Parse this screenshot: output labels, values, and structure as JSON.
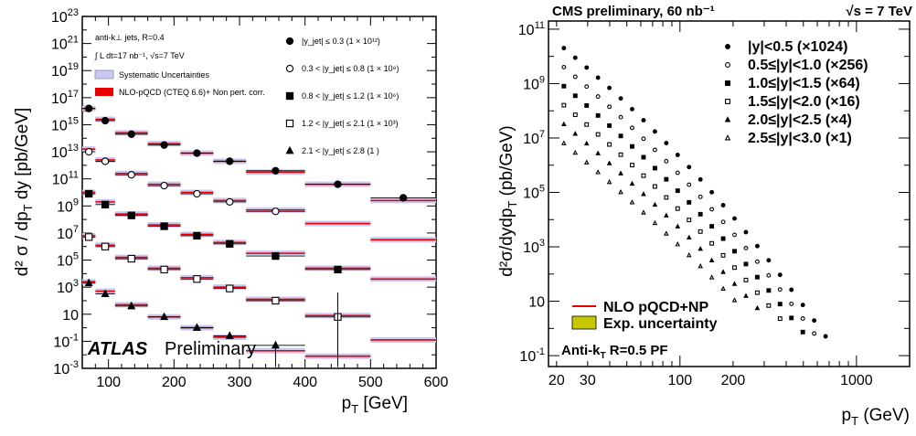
{
  "chart_data": [
    {
      "type": "scatter",
      "panel": "atlas",
      "xlabel": "p_T [GeV]",
      "ylabel": "d²σ / dp_T dy [pb/GeV]",
      "xlim": [
        60,
        600
      ],
      "ylim_log10": [
        -3,
        23
      ],
      "y_scale": "log",
      "x_ticks": [
        "100",
        "200",
        "300",
        "400",
        "500",
        "600"
      ],
      "y_ticks": [
        "10^-3",
        "10^-1",
        "10",
        "10^3",
        "10^5",
        "10^7",
        "10^9",
        "10^11",
        "10^13",
        "10^15",
        "10^17",
        "10^19",
        "10^21",
        "10^23"
      ],
      "info_lines": [
        "anti-k⊥ jets,  R=0.4",
        "∫ L dt=17 nb⁻¹, √s=7 TeV"
      ],
      "band_legend": [
        "Systematic Uncertainties",
        "NLO-pQCD (CTEQ 6.6)+ Non pert. corr."
      ],
      "brand": "ATLAS",
      "brand_sub": "Preliminary",
      "colors": {
        "systematic_band": "#c8c8f0",
        "theory": "#e60000",
        "marker": "#000000"
      },
      "bin_edges": [
        60,
        80,
        110,
        160,
        210,
        260,
        310,
        400,
        500,
        600
      ],
      "series": [
        {
          "name": "|y_jet| ≤ 0.3 (1 × 10¹²)",
          "marker": "filled-circle",
          "log10_values": [
            16.2,
            15.3,
            14.3,
            13.5,
            12.9,
            12.3,
            11.6,
            10.6,
            9.6
          ],
          "theory_log10": [
            16.2,
            15.4,
            14.4,
            13.6,
            12.9,
            12.3,
            11.5,
            10.6,
            9.4
          ]
        },
        {
          "name": "0.3 < |y_jet| ≤ 0.8 (1 × 10⁹)",
          "marker": "open-circle",
          "log10_values": [
            13.0,
            12.3,
            11.3,
            10.5,
            9.9,
            9.3,
            8.6,
            null,
            null
          ],
          "theory_log10": [
            13.2,
            12.4,
            11.4,
            10.6,
            10.0,
            9.4,
            8.7,
            7.7,
            6.5
          ]
        },
        {
          "name": "0.8 < |y_jet| ≤ 1.2 (1 × 10⁶)",
          "marker": "filled-square",
          "log10_values": [
            9.9,
            9.1,
            8.3,
            7.5,
            6.8,
            6.2,
            5.3,
            4.3,
            null
          ],
          "theory_log10": [
            10.0,
            9.3,
            8.4,
            7.6,
            6.9,
            6.3,
            5.5,
            4.4,
            3.6
          ]
        },
        {
          "name": "1.2 < |y_jet| ≤ 2.1 (1 × 10³)",
          "marker": "open-square",
          "log10_values": [
            6.7,
            6.0,
            5.1,
            4.3,
            3.6,
            2.9,
            2.0,
            0.8,
            null
          ],
          "theory_log10": [
            6.8,
            6.1,
            5.2,
            4.4,
            3.7,
            3.0,
            2.1,
            0.9,
            -0.9
          ]
        },
        {
          "name": "2.1 < |y_jet| ≤ 2.8 (1 )",
          "marker": "filled-triangle",
          "log10_values": [
            3.3,
            2.5,
            1.6,
            0.8,
            0.0,
            -0.6,
            -1.3,
            null,
            null
          ],
          "theory_log10": [
            3.4,
            2.7,
            1.7,
            0.8,
            0.0,
            -0.7,
            -1.7,
            -2.1,
            null
          ]
        }
      ]
    },
    {
      "type": "scatter",
      "panel": "cms",
      "title": "CMS preliminary, 60 nb⁻¹",
      "energy": "√s = 7 TeV",
      "xlabel": "p_T (GeV)",
      "ylabel": "d²σ/dydp_T (pb/GeV)",
      "x_scale": "log",
      "y_scale": "log",
      "xlim": [
        18,
        2000
      ],
      "ylim_log10": [
        -1.4,
        11.3
      ],
      "x_ticks": [
        "20",
        "30",
        "100",
        "200",
        "1000"
      ],
      "y_ticks": [
        "10^-1",
        "10",
        "10^3",
        "10^5",
        "10^7",
        "10^9",
        "10^11"
      ],
      "legend_nlo": "NLO pQCD+NP",
      "legend_band": "Exp. uncertainty",
      "algo_label": "Anti-k_T R=0.5 PF",
      "colors": {
        "band": "#c8c800",
        "theory": "#e60000",
        "marker": "#000000"
      },
      "series": [
        {
          "name": "|y|<0.5 (×1024)",
          "marker": "filled-circle",
          "start_log10": 10.5,
          "pt_max": 900
        },
        {
          "name": "0.5≤|y|<1.0 (×256)",
          "marker": "open-circle",
          "start_log10": 9.8,
          "pt_max": 850
        },
        {
          "name": "1.0≤|y|<1.5 (×64)",
          "marker": "filled-square",
          "start_log10": 9.1,
          "pt_max": 700
        },
        {
          "name": "1.5≤|y|<2.0 (×16)",
          "marker": "open-square",
          "start_log10": 8.4,
          "pt_max": 560
        },
        {
          "name": "2.0≤|y|<2.5 (×4)",
          "marker": "filled-triangle",
          "start_log10": 7.7,
          "pt_max": 410
        },
        {
          "name": "2.5≤|y|<3.0 (×1)",
          "marker": "open-triangle",
          "start_log10": 7.0,
          "pt_max": 300
        }
      ]
    }
  ]
}
